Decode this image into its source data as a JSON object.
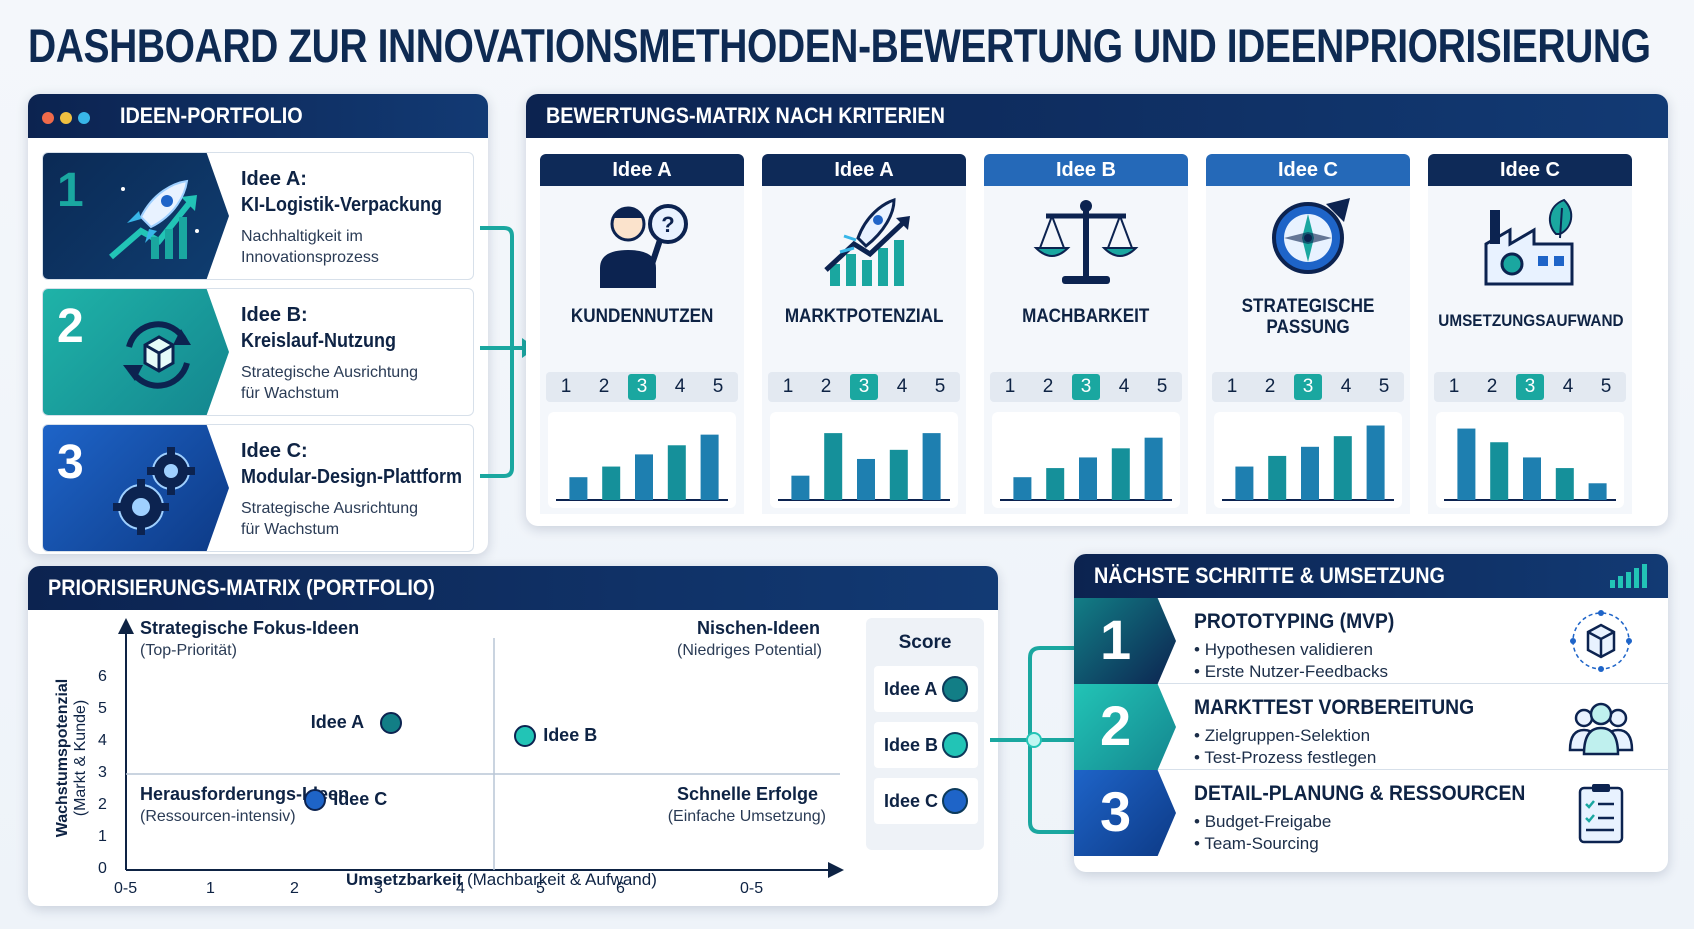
{
  "title": "DASHBOARD ZUR INNOVATIONSMETHODEN-BEWERTUNG UND IDEENPRIORISIERUNG",
  "colors": {
    "navy": "#0c2350",
    "teal": "#1aa7a0",
    "blue": "#1e64c8",
    "window_dots": [
      "#f06a4a",
      "#f0c040",
      "#38b6e8"
    ]
  },
  "portfolio": {
    "header": "IDEEN-PORTFOLIO",
    "ideas": [
      {
        "number": "1",
        "label": "Idee A:",
        "name": "KI-Logistik-Verpackung",
        "description": "Nachhaltigkeit im Innovationsprozess",
        "icon": "rocket-growth-icon"
      },
      {
        "number": "2",
        "label": "Idee B:",
        "name": "Kreislauf-Nutzung",
        "description": "Strategische Ausrichtung für Wachstum",
        "icon": "circular-box-icon"
      },
      {
        "number": "3",
        "label": "Idee C:",
        "name": "Modular-Design-Plattform",
        "description": "Strategische Ausrichtung für Wachstum",
        "icon": "gears-icon"
      }
    ]
  },
  "evaluation": {
    "header": "BEWERTUNGS-MATRIX NACH KRITERIEN",
    "criteria": [
      {
        "idea": "Idee A",
        "name": "KUNDENNUTZEN",
        "icon": "person-question-icon",
        "scores": [
          "1",
          "2",
          "3",
          "4",
          "5"
        ],
        "selected": "3",
        "bars": [
          30,
          44,
          60,
          72,
          86
        ]
      },
      {
        "idea": "Idee A",
        "name": "MARKTPOTENZIAL",
        "icon": "rocket-chart-icon",
        "scores": [
          "1",
          "2",
          "3",
          "4",
          "5"
        ],
        "selected": "3",
        "bars": [
          32,
          88,
          54,
          66,
          88
        ]
      },
      {
        "idea": "Idee B",
        "name": "MACHBARKEIT",
        "icon": "scale-icon",
        "scores": [
          "1",
          "2",
          "3",
          "4",
          "5"
        ],
        "selected": "3",
        "bars": [
          30,
          42,
          56,
          68,
          82
        ]
      },
      {
        "idea": "Idee C",
        "name": "STRATEGISCHE PASSUNG",
        "icon": "compass-icon",
        "scores": [
          "1",
          "2",
          "3",
          "4",
          "5"
        ],
        "selected": "3",
        "bars": [
          44,
          58,
          70,
          84,
          98
        ]
      },
      {
        "idea": "Idee C",
        "name": "UMSETZUNGSAUFWAND",
        "icon": "factory-leaf-icon",
        "scores": [
          "1",
          "2",
          "3",
          "4",
          "5"
        ],
        "selected": "3",
        "bars": [
          94,
          76,
          56,
          42,
          22
        ]
      }
    ]
  },
  "priority": {
    "header": "PRIORISIERUNGS-MATRIX (PORTFOLIO)",
    "quadrants": {
      "top_left": {
        "title": "Strategische Fokus-Ideen",
        "subtitle": "(Top-Priorität)"
      },
      "top_right": {
        "title": "Nischen-Ideen",
        "subtitle": "(Niedriges Potential)"
      },
      "bottom_left": {
        "title": "Herausforderungs-Ideen",
        "subtitle": "(Ressourcen-intensiv)"
      },
      "bottom_right": {
        "title": "Schnelle Erfolge",
        "subtitle": "(Einfache Umsetzung)"
      }
    },
    "y_axis_title": "Wachstumspotenzial",
    "y_axis_subtitle": "(Markt & Kunde)",
    "x_axis_title": "Umsetzbarkeit",
    "x_axis_subtitle": "(Machbarkeit & Aufwand)",
    "y_ticks": [
      "0",
      "1",
      "2",
      "3",
      "4",
      "5",
      "6"
    ],
    "x_ticks": [
      "0-5",
      "1",
      "2",
      "3",
      "4",
      "5",
      "6",
      "0-5"
    ],
    "points": [
      {
        "name": "Idee A",
        "x": 3.2,
        "y": 4.6,
        "color": "#127e86"
      },
      {
        "name": "Idee B",
        "x": 4.8,
        "y": 4.2,
        "color": "#22c4b6"
      },
      {
        "name": "Idee C",
        "x": 2.3,
        "y": 2.2,
        "color": "#1e64c8"
      }
    ],
    "score_title": "Score",
    "scores": [
      {
        "name": "Idee A",
        "color": "#127e86"
      },
      {
        "name": "Idee B",
        "color": "#22c4b6"
      },
      {
        "name": "Idee C",
        "color": "#1e64c8"
      }
    ]
  },
  "steps": {
    "header": "NÄCHSTE SCHRITTE & UMSETZUNG",
    "items": [
      {
        "number": "1",
        "title": "PROTOTYPING (MVP)",
        "bullets": [
          "Hypothesen validieren",
          "Erste Nutzer-Feedbacks"
        ],
        "icon": "cube-network-icon"
      },
      {
        "number": "2",
        "title": "MARKTTEST VORBEREITUNG",
        "bullets": [
          "Zielgruppen-Selektion",
          "Test-Prozess festlegen"
        ],
        "icon": "user-group-icon"
      },
      {
        "number": "3",
        "title": "DETAIL-PLANUNG & RESSOURCEN",
        "bullets": [
          "Budget-Freigabe",
          "Team-Sourcing"
        ],
        "icon": "clipboard-checklist-icon"
      }
    ]
  }
}
